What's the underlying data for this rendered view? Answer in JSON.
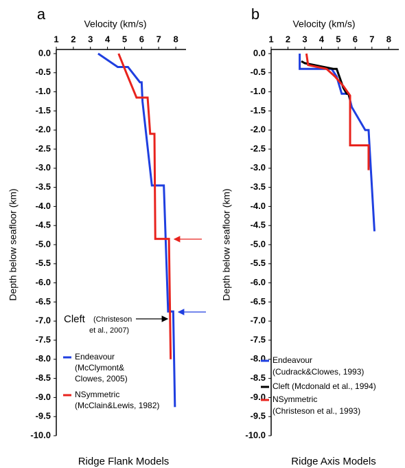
{
  "chart_data": [
    {
      "type": "line",
      "panel_label": "a",
      "title": "Velocity (km/s)",
      "y_label": "Depth below seafloor (km)",
      "caption": "Ridge Flank Models",
      "xlim": [
        1,
        8.6
      ],
      "xticks": [
        1,
        2,
        3,
        4,
        5,
        6,
        7,
        8
      ],
      "ylim": [
        -10,
        0
      ],
      "yticks": [
        {
          "value": 0,
          "label": "0.0"
        },
        -0.5,
        {
          "value": -1,
          "label": "-1.0"
        },
        -1.5,
        {
          "value": -2,
          "label": "-2.0"
        },
        -2.5,
        {
          "value": -3,
          "label": "-3.0"
        },
        -3.5,
        {
          "value": -4,
          "label": "-4.0"
        },
        -4.5,
        {
          "value": -5,
          "label": "-5.0"
        },
        -5.5,
        {
          "value": -6,
          "label": "-6.0"
        },
        -6.5,
        {
          "value": -7,
          "label": "-7.0"
        },
        -7.5,
        {
          "value": -8,
          "label": "-8.0"
        },
        -8.5,
        {
          "value": -9,
          "label": "-9.0"
        },
        -9.5,
        {
          "value": -10,
          "label": "-10.0"
        }
      ],
      "series": [
        {
          "name": "Endeavour",
          "note": [
            "(McClymont&",
            "Clowes, 2005)"
          ],
          "color": "#1f3fe0",
          "x": [
            3.45,
            4.6,
            5.2,
            5.9,
            6.0,
            6.05,
            6.6,
            7.3,
            7.55,
            7.85,
            7.95
          ],
          "values": [
            0,
            -0.35,
            -0.35,
            -0.75,
            -0.75,
            -1.25,
            -3.45,
            -3.45,
            -6.75,
            -6.75,
            -9.25
          ]
        },
        {
          "name": "NSymmetric",
          "note": [
            "(McClain&Lewis, 1982)"
          ],
          "color": "#e8231d",
          "x": [
            4.65,
            5.1,
            5.7,
            6.35,
            6.5,
            6.75,
            6.8,
            7.6,
            7.7
          ],
          "values": [
            0,
            -0.5,
            -1.15,
            -1.15,
            -2.1,
            -2.1,
            -4.85,
            -4.85,
            -8.0
          ]
        }
      ],
      "annotation": [
        "Cleft",
        "(Christeson",
        "et al., 2007)"
      ]
    },
    {
      "type": "line",
      "panel_label": "b",
      "title": "Velocity (km/s)",
      "y_label": "Depth below seafloor (km)",
      "caption": "Ridge Axis Models",
      "xlim": [
        1,
        8.6
      ],
      "xticks": [
        1,
        2,
        3,
        4,
        5,
        6,
        7,
        8
      ],
      "ylim": [
        -10,
        0
      ],
      "yticks": [
        {
          "value": 0,
          "label": "0.0"
        },
        -0.5,
        {
          "value": -1,
          "label": "-1.0"
        },
        -1.5,
        {
          "value": -2,
          "label": "-2.0"
        },
        -2.5,
        {
          "value": -3,
          "label": "-3.0"
        },
        -3.5,
        {
          "value": -4,
          "label": "-4.0"
        },
        -4.5,
        {
          "value": -5,
          "label": "-5.0"
        },
        -5.5,
        {
          "value": -6,
          "label": "-6.0"
        },
        -6.5,
        {
          "value": -7,
          "label": "-7.0"
        },
        -7.5,
        {
          "value": -8,
          "label": "-8.0"
        },
        -8.5,
        {
          "value": -9,
          "label": "-9.0"
        },
        -9.5,
        {
          "value": -10,
          "label": "-10.0"
        }
      ],
      "series": [
        {
          "name": "Endeavour",
          "note": [
            "(Cudrack&Clowes, 1993)"
          ],
          "color": "#1f3fe0",
          "x": [
            2.7,
            2.7,
            4.6,
            4.9,
            5.2,
            5.6,
            5.8,
            6.6,
            6.8,
            7.15
          ],
          "values": [
            0,
            -0.4,
            -0.4,
            -0.6,
            -1.05,
            -1.05,
            -1.4,
            -2.0,
            -2.0,
            -4.65
          ]
        },
        {
          "name": "Cleft (Mcdonald et al., 1994)",
          "note": [],
          "color": "#000000",
          "x": [
            2.8,
            3.0,
            4.7,
            4.9,
            5.3,
            5.5,
            5.6,
            5.7
          ],
          "values": [
            -0.2,
            -0.25,
            -0.4,
            -0.4,
            -0.9,
            -1.05,
            -1.05,
            -1.2
          ]
        },
        {
          "name": "NSymmetric",
          "note": [
            "(Christeson et al., 1993)"
          ],
          "color": "#e8231d",
          "x": [
            3.1,
            3.2,
            4.3,
            4.8,
            5.3,
            5.7,
            5.7,
            6.8,
            6.8
          ],
          "values": [
            0,
            -0.3,
            -0.4,
            -0.6,
            -0.85,
            -1.1,
            -2.4,
            -2.4,
            -3.05
          ]
        }
      ]
    }
  ]
}
